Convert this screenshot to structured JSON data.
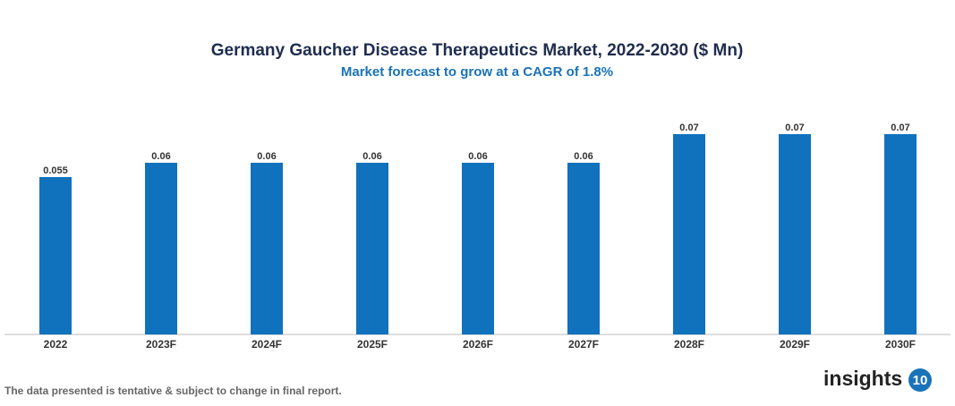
{
  "chart_data": {
    "type": "bar",
    "title": "Germany Gaucher Disease Therapeutics Market, 2022-2030 ($ Mn)",
    "subtitle": "Market forecast to grow at a CAGR of 1.8%",
    "categories": [
      "2022",
      "2023F",
      "2024F",
      "2025F",
      "2026F",
      "2027F",
      "2028F",
      "2029F",
      "2030F"
    ],
    "values": [
      0.055,
      0.06,
      0.06,
      0.06,
      0.06,
      0.06,
      0.07,
      0.07,
      0.07
    ],
    "color": "#1072bd"
  },
  "footer": {
    "note": "The data presented is tentative & subject to change in final report.",
    "logo_text": "insights",
    "logo_number": "10"
  }
}
